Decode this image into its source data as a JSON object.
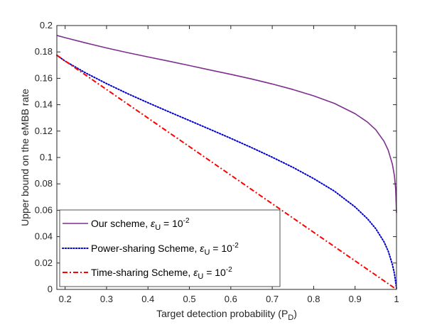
{
  "chart_data": {
    "type": "line",
    "xlabel": "Target detection probability (P",
    "xlabel_sub": "D",
    "xlabel_suffix": ")",
    "ylabel": "Upper bound on the eMBB rate",
    "xlim": [
      0.18,
      1.0
    ],
    "ylim": [
      0,
      0.2
    ],
    "xticks": [
      0.2,
      0.3,
      0.4,
      0.5,
      0.6,
      0.7,
      0.8,
      0.9,
      1
    ],
    "xtick_labels": [
      "0.2",
      "0.3",
      "0.4",
      "0.5",
      "0.6",
      "0.7",
      "0.8",
      "0.9",
      "1"
    ],
    "yticks": [
      0,
      0.02,
      0.04,
      0.06,
      0.08,
      0.1,
      0.12,
      0.14,
      0.16,
      0.18,
      0.2
    ],
    "ytick_labels": [
      "0",
      "0.02",
      "0.04",
      "0.06",
      "0.08",
      "0.1",
      "0.12",
      "0.14",
      "0.16",
      "0.18",
      "0.2"
    ],
    "grid": false,
    "legend_position": "bottom-left",
    "series": [
      {
        "name": "Our scheme",
        "legend_prefix": "Our scheme, ",
        "legend_eps_sub": "U",
        "legend_eq": " = 10",
        "legend_exp": "-2",
        "color": "#7e2f8e",
        "style": "solid",
        "x": [
          0.18,
          0.2,
          0.25,
          0.3,
          0.35,
          0.4,
          0.45,
          0.5,
          0.55,
          0.6,
          0.65,
          0.7,
          0.75,
          0.8,
          0.85,
          0.9,
          0.93,
          0.95,
          0.97,
          0.98,
          0.99,
          0.995,
          0.998,
          1.0
        ],
        "y": [
          0.1925,
          0.1908,
          0.1868,
          0.183,
          0.1795,
          0.1762,
          0.173,
          0.1697,
          0.1663,
          0.163,
          0.1595,
          0.1557,
          0.1515,
          0.1467,
          0.141,
          0.1332,
          0.1268,
          0.121,
          0.1122,
          0.1055,
          0.095,
          0.086,
          0.076,
          0.058
        ]
      },
      {
        "name": "Power-sharing Scheme",
        "legend_prefix": "Power-sharing Scheme, ",
        "legend_eps_sub": "U",
        "legend_eq": " = 10",
        "legend_exp": "-2",
        "color": "#0000cc",
        "style": "dotted",
        "x": [
          0.18,
          0.2,
          0.25,
          0.3,
          0.35,
          0.4,
          0.45,
          0.5,
          0.55,
          0.6,
          0.65,
          0.7,
          0.75,
          0.8,
          0.85,
          0.9,
          0.93,
          0.95,
          0.97,
          0.98,
          0.99,
          0.995,
          1.0
        ],
        "y": [
          0.1775,
          0.173,
          0.164,
          0.156,
          0.1485,
          0.1415,
          0.1347,
          0.128,
          0.1213,
          0.1145,
          0.1075,
          0.1002,
          0.0925,
          0.084,
          0.0745,
          0.0625,
          0.0535,
          0.046,
          0.036,
          0.029,
          0.019,
          0.012,
          0.001
        ]
      },
      {
        "name": "Time-sharing Scheme",
        "legend_prefix": "Time-sharing Scheme, ",
        "legend_eps_sub": "U",
        "legend_eq": " = 10",
        "legend_exp": "-2",
        "color": "#ff0000",
        "style": "dashdot",
        "x": [
          0.18,
          1.0
        ],
        "y": [
          0.1775,
          0.0
        ]
      }
    ]
  }
}
